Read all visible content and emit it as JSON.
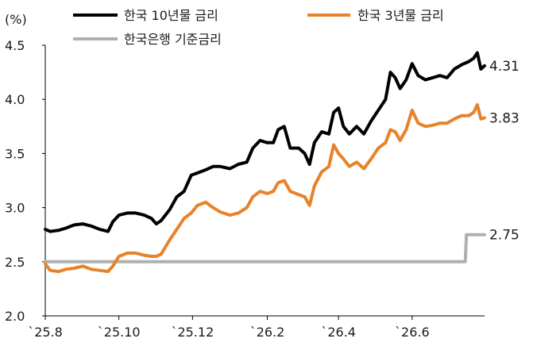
{
  "chart_data": {
    "type": "line",
    "ylabel": "(%)",
    "ylim": [
      2.0,
      4.5
    ],
    "yticks": [
      "2.0",
      "2.5",
      "3.0",
      "3.5",
      "4.0",
      "4.5"
    ],
    "xlim": [
      "2025-08-01",
      "2026-07-31"
    ],
    "xticks": [
      {
        "date": "2025-08-01",
        "label": "`25.8"
      },
      {
        "date": "2025-10-01",
        "label": "`25.10"
      },
      {
        "date": "2025-12-01",
        "label": "`25.12"
      },
      {
        "date": "2026-02-01",
        "label": "`26.2"
      },
      {
        "date": "2026-04-01",
        "label": "`26.4"
      },
      {
        "date": "2026-06-01",
        "label": "`26.6"
      }
    ],
    "grid": false,
    "legend_position": "top",
    "series": [
      {
        "name": "한국 10년물 금리",
        "color": "#000000",
        "end_label": "4.31",
        "points": [
          [
            "2025-08-01",
            2.8
          ],
          [
            "2025-08-05",
            2.78
          ],
          [
            "2025-08-12",
            2.79
          ],
          [
            "2025-08-18",
            2.81
          ],
          [
            "2025-08-25",
            2.84
          ],
          [
            "2025-09-01",
            2.85
          ],
          [
            "2025-09-08",
            2.83
          ],
          [
            "2025-09-15",
            2.8
          ],
          [
            "2025-09-22",
            2.78
          ],
          [
            "2025-09-26",
            2.87
          ],
          [
            "2025-10-01",
            2.93
          ],
          [
            "2025-10-08",
            2.95
          ],
          [
            "2025-10-15",
            2.95
          ],
          [
            "2025-10-22",
            2.93
          ],
          [
            "2025-10-28",
            2.9
          ],
          [
            "2025-11-01",
            2.85
          ],
          [
            "2025-11-05",
            2.88
          ],
          [
            "2025-11-12",
            2.98
          ],
          [
            "2025-11-18",
            3.1
          ],
          [
            "2025-11-24",
            3.15
          ],
          [
            "2025-11-30",
            3.3
          ],
          [
            "2025-12-05",
            3.32
          ],
          [
            "2025-12-12",
            3.35
          ],
          [
            "2025-12-18",
            3.38
          ],
          [
            "2025-12-24",
            3.38
          ],
          [
            "2026-01-01",
            3.36
          ],
          [
            "2026-01-08",
            3.4
          ],
          [
            "2026-01-15",
            3.42
          ],
          [
            "2026-01-20",
            3.55
          ],
          [
            "2026-01-26",
            3.62
          ],
          [
            "2026-02-01",
            3.6
          ],
          [
            "2026-02-06",
            3.6
          ],
          [
            "2026-02-10",
            3.72
          ],
          [
            "2026-02-15",
            3.75
          ],
          [
            "2026-02-20",
            3.55
          ],
          [
            "2026-02-27",
            3.55
          ],
          [
            "2026-03-04",
            3.5
          ],
          [
            "2026-03-08",
            3.4
          ],
          [
            "2026-03-12",
            3.6
          ],
          [
            "2026-03-18",
            3.7
          ],
          [
            "2026-03-24",
            3.68
          ],
          [
            "2026-03-28",
            3.88
          ],
          [
            "2026-04-01",
            3.92
          ],
          [
            "2026-04-05",
            3.75
          ],
          [
            "2026-04-10",
            3.68
          ],
          [
            "2026-04-16",
            3.75
          ],
          [
            "2026-04-22",
            3.68
          ],
          [
            "2026-04-28",
            3.8
          ],
          [
            "2026-05-04",
            3.9
          ],
          [
            "2026-05-10",
            4.0
          ],
          [
            "2026-05-14",
            4.25
          ],
          [
            "2026-05-18",
            4.2
          ],
          [
            "2026-05-22",
            4.1
          ],
          [
            "2026-05-27",
            4.18
          ],
          [
            "2026-06-01",
            4.33
          ],
          [
            "2026-06-06",
            4.22
          ],
          [
            "2026-06-12",
            4.18
          ],
          [
            "2026-06-18",
            4.2
          ],
          [
            "2026-06-24",
            4.22
          ],
          [
            "2026-06-30",
            4.2
          ],
          [
            "2026-07-06",
            4.28
          ],
          [
            "2026-07-12",
            4.32
          ],
          [
            "2026-07-18",
            4.35
          ],
          [
            "2026-07-22",
            4.38
          ],
          [
            "2026-07-25",
            4.43
          ],
          [
            "2026-07-28",
            4.28
          ],
          [
            "2026-07-31",
            4.31
          ]
        ]
      },
      {
        "name": "한국 3년물 금리",
        "color": "#E8822A",
        "end_label": "3.83",
        "points": [
          [
            "2025-08-01",
            2.48
          ],
          [
            "2025-08-05",
            2.42
          ],
          [
            "2025-08-12",
            2.41
          ],
          [
            "2025-08-18",
            2.43
          ],
          [
            "2025-08-25",
            2.44
          ],
          [
            "2025-09-01",
            2.46
          ],
          [
            "2025-09-08",
            2.43
          ],
          [
            "2025-09-15",
            2.42
          ],
          [
            "2025-09-22",
            2.41
          ],
          [
            "2025-09-26",
            2.46
          ],
          [
            "2025-10-01",
            2.55
          ],
          [
            "2025-10-08",
            2.58
          ],
          [
            "2025-10-15",
            2.58
          ],
          [
            "2025-10-22",
            2.56
          ],
          [
            "2025-10-28",
            2.55
          ],
          [
            "2025-11-01",
            2.55
          ],
          [
            "2025-11-05",
            2.57
          ],
          [
            "2025-11-12",
            2.7
          ],
          [
            "2025-11-18",
            2.8
          ],
          [
            "2025-11-24",
            2.9
          ],
          [
            "2025-11-30",
            2.95
          ],
          [
            "2025-12-05",
            3.02
          ],
          [
            "2025-12-12",
            3.05
          ],
          [
            "2025-12-18",
            3.0
          ],
          [
            "2025-12-24",
            2.96
          ],
          [
            "2026-01-01",
            2.93
          ],
          [
            "2026-01-08",
            2.95
          ],
          [
            "2026-01-15",
            3.0
          ],
          [
            "2026-01-20",
            3.1
          ],
          [
            "2026-01-26",
            3.15
          ],
          [
            "2026-02-01",
            3.13
          ],
          [
            "2026-02-06",
            3.15
          ],
          [
            "2026-02-10",
            3.23
          ],
          [
            "2026-02-15",
            3.25
          ],
          [
            "2026-02-20",
            3.15
          ],
          [
            "2026-02-27",
            3.12
          ],
          [
            "2026-03-04",
            3.1
          ],
          [
            "2026-03-08",
            3.02
          ],
          [
            "2026-03-12",
            3.2
          ],
          [
            "2026-03-18",
            3.33
          ],
          [
            "2026-03-24",
            3.38
          ],
          [
            "2026-03-28",
            3.58
          ],
          [
            "2026-04-01",
            3.5
          ],
          [
            "2026-04-05",
            3.45
          ],
          [
            "2026-04-10",
            3.38
          ],
          [
            "2026-04-16",
            3.42
          ],
          [
            "2026-04-22",
            3.36
          ],
          [
            "2026-04-28",
            3.45
          ],
          [
            "2026-05-04",
            3.55
          ],
          [
            "2026-05-10",
            3.6
          ],
          [
            "2026-05-14",
            3.72
          ],
          [
            "2026-05-18",
            3.7
          ],
          [
            "2026-05-22",
            3.62
          ],
          [
            "2026-05-27",
            3.72
          ],
          [
            "2026-06-01",
            3.9
          ],
          [
            "2026-06-06",
            3.78
          ],
          [
            "2026-06-12",
            3.75
          ],
          [
            "2026-06-18",
            3.76
          ],
          [
            "2026-06-24",
            3.78
          ],
          [
            "2026-06-30",
            3.78
          ],
          [
            "2026-07-06",
            3.82
          ],
          [
            "2026-07-12",
            3.85
          ],
          [
            "2026-07-18",
            3.85
          ],
          [
            "2026-07-22",
            3.88
          ],
          [
            "2026-07-25",
            3.95
          ],
          [
            "2026-07-28",
            3.82
          ],
          [
            "2026-07-31",
            3.83
          ]
        ]
      },
      {
        "name": "한국은행 기준금리",
        "color": "#AFAFAF",
        "end_label": "2.75",
        "points": [
          [
            "2025-08-01",
            2.5
          ],
          [
            "2026-07-15",
            2.5
          ],
          [
            "2026-07-16",
            2.75
          ],
          [
            "2026-07-31",
            2.75
          ]
        ]
      }
    ]
  }
}
